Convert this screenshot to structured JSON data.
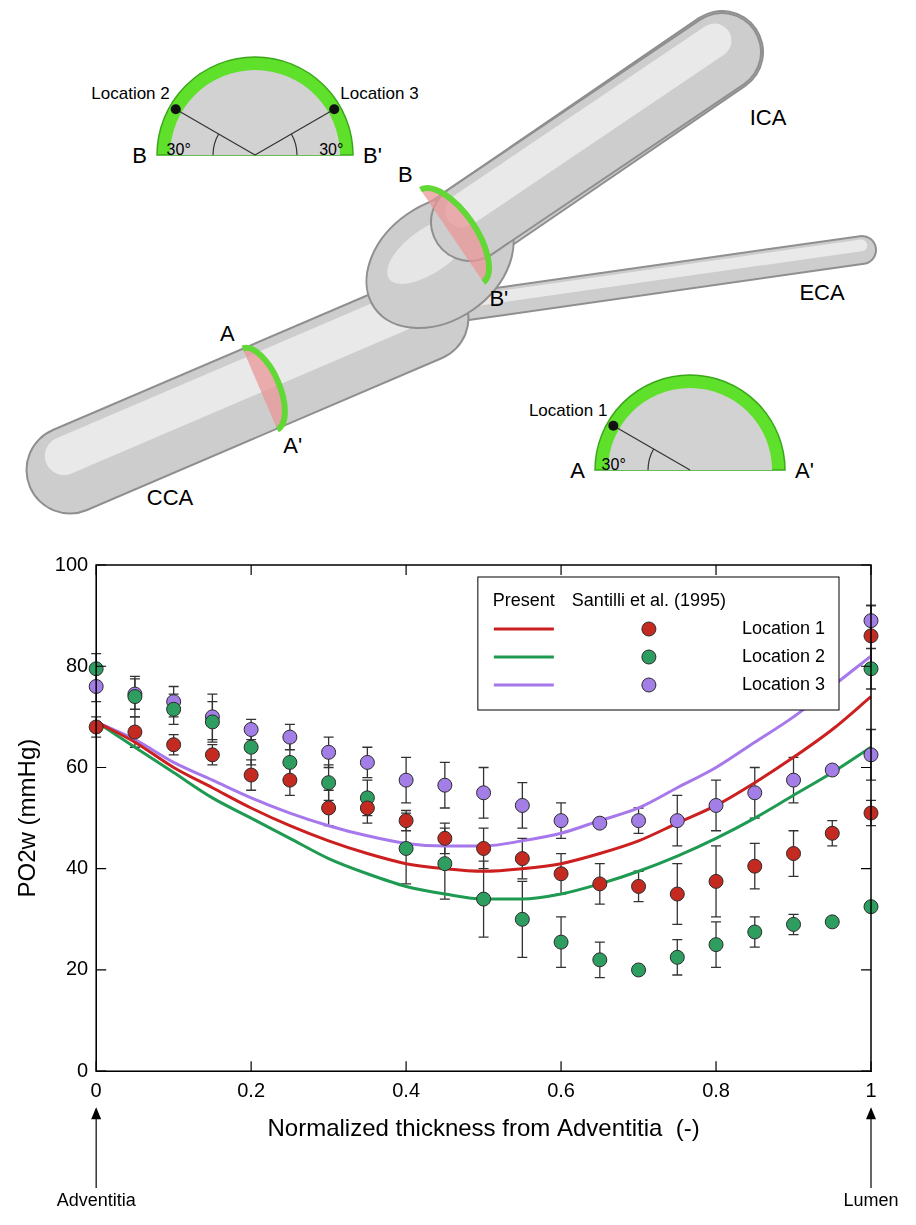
{
  "chart_data": {
    "type": "scatter",
    "x_label": "Normalized thickness from Adventitia  (-)",
    "y_label": "PO2w (mmHg)",
    "xlim": [
      0,
      1
    ],
    "xticks": [
      0,
      0.2,
      0.4,
      0.6,
      0.8,
      1
    ],
    "ylim": [
      0,
      100
    ],
    "yticks": [
      0,
      20,
      40,
      60,
      80,
      100
    ],
    "grid": false,
    "legend": "upper right",
    "annotations": [
      {
        "text": "Adventitia",
        "x": 0
      },
      {
        "text": "Lumen",
        "x": 1
      }
    ],
    "series": [
      {
        "name": "Location 1",
        "group": "Present",
        "type": "line",
        "line_style": "solid",
        "color": "#cc1f1f",
        "x": [
          0,
          0.05,
          0.1,
          0.15,
          0.2,
          0.25,
          0.3,
          0.35,
          0.4,
          0.45,
          0.5,
          0.55,
          0.6,
          0.65,
          0.7,
          0.75,
          0.8,
          0.85,
          0.9,
          0.95,
          1
        ],
        "values": [
          69,
          65,
          60,
          56,
          52,
          48.5,
          45.5,
          43,
          41,
          40,
          39.5,
          40,
          41,
          43,
          45.5,
          49,
          52.5,
          57,
          62,
          67.5,
          74
        ]
      },
      {
        "name": "Location 2",
        "group": "Present",
        "type": "line",
        "line_style": "solid",
        "color": "#1e9a52",
        "x": [
          0,
          0.05,
          0.1,
          0.15,
          0.2,
          0.25,
          0.3,
          0.35,
          0.4,
          0.45,
          0.5,
          0.55,
          0.6,
          0.65,
          0.7,
          0.75,
          0.8,
          0.85,
          0.9,
          0.95,
          1
        ],
        "values": [
          69,
          64,
          59,
          54,
          50,
          46,
          42,
          39,
          36.5,
          35,
          34,
          34,
          35,
          37,
          39.5,
          42.5,
          46,
          50,
          54.5,
          59,
          64
        ]
      },
      {
        "name": "Location 3",
        "group": "Present",
        "type": "line",
        "line_style": "solid",
        "color": "#a678ec",
        "x": [
          0,
          0.05,
          0.1,
          0.15,
          0.2,
          0.25,
          0.3,
          0.35,
          0.4,
          0.45,
          0.5,
          0.55,
          0.6,
          0.65,
          0.7,
          0.75,
          0.8,
          0.85,
          0.9,
          0.95,
          1
        ],
        "values": [
          69,
          65.5,
          61,
          57.5,
          54,
          51,
          48.5,
          46.5,
          45,
          44.5,
          44.5,
          45.5,
          47,
          49.5,
          52,
          56,
          60,
          65,
          70,
          76,
          82
        ]
      },
      {
        "name": "Location 1",
        "group": "Santilli et al. (1995)",
        "type": "scatter",
        "marker": "circle",
        "color": "#c42a20",
        "x": [
          0,
          0.05,
          0.1,
          0.15,
          0.2,
          0.25,
          0.3,
          0.35,
          0.4,
          0.45,
          0.5,
          0.55,
          0.6,
          0.65,
          0.7,
          0.75,
          0.8,
          0.85,
          0.9,
          0.95,
          1,
          1
        ],
        "values": [
          68,
          67,
          64.5,
          62.5,
          58.5,
          57.5,
          52,
          52,
          49.5,
          46,
          44,
          42,
          39,
          37,
          36.5,
          35,
          37.5,
          40.5,
          43,
          47,
          51,
          86
        ],
        "errors": [
          2,
          3,
          2,
          2,
          3,
          3,
          3.5,
          3,
          2,
          3,
          4,
          4,
          4,
          4,
          3,
          6,
          7,
          4.5,
          4.5,
          2.5,
          2.5,
          6
        ]
      },
      {
        "name": "Location 2",
        "group": "Santilli et al. (1995)",
        "type": "scatter",
        "marker": "circle",
        "color": "#2e9e60",
        "x": [
          0,
          0.05,
          0.1,
          0.15,
          0.2,
          0.25,
          0.3,
          0.35,
          0.4,
          0.45,
          0.5,
          0.55,
          0.6,
          0.65,
          0.7,
          0.75,
          0.8,
          0.85,
          0.9,
          0.95,
          1,
          1
        ],
        "values": [
          79.5,
          74,
          71.5,
          69,
          64,
          61,
          57,
          54,
          44,
          41,
          34,
          30,
          25.5,
          22,
          20,
          22.5,
          25,
          27.5,
          29,
          29.5,
          32.5,
          79.5
        ],
        "errors": [
          3,
          4,
          3,
          4,
          3.5,
          4,
          3.5,
          3.5,
          7,
          7,
          7.5,
          7.5,
          5,
          3.5,
          null,
          3.5,
          4.5,
          3,
          2,
          null,
          null,
          4
        ]
      },
      {
        "name": "Location 3",
        "group": "Santilli et al. (1995)",
        "type": "scatter",
        "marker": "circle",
        "color": "#a27ee6",
        "x": [
          0,
          0.05,
          0.1,
          0.15,
          0.2,
          0.25,
          0.3,
          0.35,
          0.4,
          0.45,
          0.5,
          0.55,
          0.6,
          0.65,
          0.7,
          0.75,
          0.8,
          0.85,
          0.9,
          0.95,
          1,
          1
        ],
        "values": [
          76,
          74.5,
          73,
          70,
          67.5,
          66,
          63,
          61,
          57.5,
          56.5,
          55,
          52.5,
          49.5,
          49,
          49.5,
          49.5,
          52.5,
          55,
          57.5,
          59.5,
          62.5,
          89
        ],
        "errors": [
          3,
          3,
          3,
          4.5,
          2,
          2.5,
          3,
          3,
          4.5,
          4.5,
          5,
          4.5,
          3.5,
          null,
          2.5,
          5,
          5,
          5,
          4.5,
          null,
          5,
          3
        ]
      }
    ]
  },
  "diagram": {
    "vessels": [
      "CCA",
      "ICA",
      "ECA"
    ],
    "sections": [
      [
        "A",
        "A'"
      ],
      [
        "B",
        "B'"
      ]
    ],
    "insets": [
      {
        "ends": [
          "B",
          "B'"
        ],
        "points": [
          {
            "label": "Location 2",
            "angle": "30°"
          },
          {
            "label": "Location 3",
            "angle": "30°"
          }
        ]
      },
      {
        "ends": [
          "A",
          "A'"
        ],
        "points": [
          {
            "label": "Location 1",
            "angle": "30°"
          }
        ]
      }
    ]
  }
}
